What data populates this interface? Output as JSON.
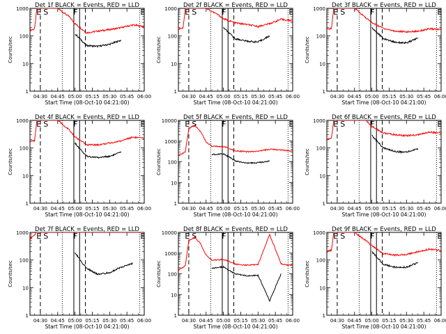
{
  "figure": {
    "panels": [
      {
        "title": "Det 1f BLACK = Events, RED = LLD",
        "xlabel": "Start Time (08-Oct-10 04:21:00)",
        "ylabel": "Counts/sec"
      },
      {
        "title": "Det 2f BLACK = Events, RED = LLD",
        "xlabel": "Start Time (08-Oct-10 04:21:00)",
        "ylabel": "Counts/sec"
      },
      {
        "title": "Det 3f BLACK = Events, RED = LLD",
        "xlabel": "Start Time (08-Oct-10 04:21:00)",
        "ylabel": "Counts/sec"
      },
      {
        "title": "Det 4f BLACK = Events, RED = LLD",
        "xlabel": "Start Time (08-Oct-10 04:21:00)",
        "ylabel": "Counts/sec"
      },
      {
        "title": "Det 5f BLACK = Events, RED = LLD",
        "xlabel": "Start Time (08-Oct-10 04:21:00)",
        "ylabel": "Counts/sec"
      },
      {
        "title": "Det 6f BLACK = Events, RED = LLD",
        "xlabel": "Start Time (08-Oct-10 04:21:00)",
        "ylabel": "Counts/sec"
      },
      {
        "title": "Det 7f BLACK = Events, RED = LLD",
        "xlabel": "Start Time (08-Oct-10 04:21:00)",
        "ylabel": "Counts/sec"
      },
      {
        "title": "Det 8f BLACK = Events, RED = LLD",
        "xlabel": "Start Time (08-Oct-10 04:21:00)",
        "ylabel": "Counts/sec"
      },
      {
        "title": "Det 9f BLACK = Events, RED = LLD",
        "xlabel": "Start Time (08-Oct-10 04:21:00)",
        "ylabel": "Counts/sec"
      }
    ],
    "x_ticks": [
      "04:30",
      "04:45",
      "05:00",
      "05:15",
      "05:30",
      "05:45",
      "06:00"
    ],
    "y_ticks": [
      "1",
      "10",
      "100",
      "1000",
      "10000"
    ],
    "markers": [
      "E",
      "S",
      "F",
      "E"
    ],
    "colors": {
      "events": "#000000",
      "lld": "#ff0000",
      "axes": "#000000"
    }
  },
  "chart_data": [
    {
      "type": "line",
      "title": "Det 1f BLACK = Events, RED = LLD",
      "xlabel": "Start Time (08-Oct-10 04:21:00)",
      "ylabel": "Counts/sec",
      "y_scale": "log",
      "xlim": [
        "04:21",
        "06:00"
      ],
      "ylim": [
        1,
        1000
      ],
      "grid": false,
      "legend": "none",
      "x": [
        "04:21",
        "04:25",
        "04:27",
        "04:33",
        "04:45",
        "04:55",
        "05:00",
        "05:10",
        "05:20",
        "05:30",
        "05:40",
        "05:50",
        "06:00"
      ],
      "series": [
        {
          "name": "LLD",
          "color": "#ff0000",
          "values": [
            160,
            180,
            1000,
            1000,
            1000,
            500,
            280,
            130,
            150,
            170,
            200,
            250,
            220
          ]
        },
        {
          "name": "Events",
          "color": "#000000",
          "values": [
            null,
            null,
            null,
            null,
            null,
            null,
            120,
            45,
            42,
            50,
            70,
            null,
            null
          ]
        }
      ]
    },
    {
      "type": "line",
      "title": "Det 2f BLACK = Events, RED = LLD",
      "xlabel": "Start Time (08-Oct-10 04:21:00)",
      "ylabel": "Counts/sec",
      "y_scale": "log",
      "xlim": [
        "04:21",
        "06:00"
      ],
      "ylim": [
        1,
        1000
      ],
      "grid": false,
      "legend": "none",
      "x": [
        "04:21",
        "04:25",
        "04:27",
        "04:33",
        "04:45",
        "04:55",
        "05:00",
        "05:10",
        "05:20",
        "05:30",
        "05:40",
        "05:50",
        "06:00"
      ],
      "series": [
        {
          "name": "LLD",
          "color": "#ff0000",
          "values": [
            180,
            200,
            1000,
            1000,
            1000,
            600,
            420,
            300,
            260,
            220,
            280,
            400,
            350
          ]
        },
        {
          "name": "Events",
          "color": "#000000",
          "values": [
            null,
            null,
            null,
            null,
            null,
            null,
            200,
            80,
            65,
            60,
            100,
            null,
            null
          ]
        }
      ]
    },
    {
      "type": "line",
      "title": "Det 3f BLACK = Events, RED = LLD",
      "xlabel": "Start Time (08-Oct-10 04:21:00)",
      "ylabel": "Counts/sec",
      "y_scale": "log",
      "xlim": [
        "04:21",
        "06:00"
      ],
      "ylim": [
        1,
        1000
      ],
      "grid": false,
      "legend": "none",
      "x": [
        "04:21",
        "04:25",
        "04:27",
        "04:33",
        "04:45",
        "04:55",
        "05:00",
        "05:10",
        "05:20",
        "05:30",
        "05:40",
        "05:50",
        "06:00"
      ],
      "series": [
        {
          "name": "LLD",
          "color": "#ff0000",
          "values": [
            170,
            190,
            1000,
            1000,
            1000,
            450,
            300,
            190,
            150,
            140,
            150,
            180,
            170
          ]
        },
        {
          "name": "Events",
          "color": "#000000",
          "values": [
            null,
            null,
            null,
            null,
            null,
            null,
            200,
            80,
            60,
            55,
            85,
            null,
            null
          ]
        }
      ]
    },
    {
      "type": "line",
      "title": "Det 4f BLACK = Events, RED = LLD",
      "xlabel": "Start Time (08-Oct-10 04:21:00)",
      "ylabel": "Counts/sec",
      "y_scale": "log",
      "xlim": [
        "04:21",
        "06:00"
      ],
      "ylim": [
        1,
        1000
      ],
      "grid": false,
      "legend": "none",
      "x": [
        "04:21",
        "04:25",
        "04:27",
        "04:33",
        "04:45",
        "04:55",
        "05:00",
        "05:10",
        "05:20",
        "05:30",
        "05:40",
        "05:50",
        "06:00"
      ],
      "series": [
        {
          "name": "LLD",
          "color": "#ff0000",
          "values": [
            170,
            190,
            1000,
            1000,
            1000,
            450,
            250,
            130,
            130,
            150,
            180,
            250,
            220
          ]
        },
        {
          "name": "Events",
          "color": "#000000",
          "values": [
            null,
            null,
            null,
            null,
            null,
            null,
            150,
            50,
            45,
            50,
            70,
            null,
            null
          ]
        }
      ]
    },
    {
      "type": "line",
      "title": "Det 5f BLACK = Events, RED = LLD",
      "xlabel": "Start Time (08-Oct-10 04:21:00)",
      "ylabel": "Counts/sec",
      "y_scale": "log",
      "xlim": [
        "04:21",
        "06:00"
      ],
      "ylim": [
        1,
        10000
      ],
      "grid": false,
      "legend": "none",
      "x": [
        "04:21",
        "04:27",
        "04:30",
        "04:35",
        "04:40",
        "04:45",
        "04:50",
        "05:00",
        "05:10",
        "05:20",
        "05:30",
        "05:40",
        "05:50",
        "06:00"
      ],
      "series": [
        {
          "name": "LLD",
          "color": "#ff0000",
          "values": [
            200,
            300,
            4000,
            6000,
            3000,
            900,
            550,
            550,
            350,
            300,
            320,
            400,
            380,
            320
          ]
        },
        {
          "name": "Events",
          "color": "#000000",
          "values": [
            null,
            null,
            null,
            null,
            null,
            null,
            220,
            250,
            110,
            85,
            90,
            110,
            null,
            null
          ]
        }
      ]
    },
    {
      "type": "line",
      "title": "Det 6f BLACK = Events, RED = LLD",
      "xlabel": "Start Time (08-Oct-10 04:21:00)",
      "ylabel": "Counts/sec",
      "y_scale": "log",
      "xlim": [
        "04:21",
        "06:00"
      ],
      "ylim": [
        1,
        1000
      ],
      "grid": false,
      "legend": "none",
      "x": [
        "04:21",
        "04:25",
        "04:27",
        "04:33",
        "04:45",
        "04:55",
        "05:00",
        "05:10",
        "05:20",
        "05:30",
        "05:40",
        "05:50",
        "06:00"
      ],
      "series": [
        {
          "name": "LLD",
          "color": "#ff0000",
          "values": [
            200,
            230,
            1000,
            1000,
            1000,
            1000,
            600,
            350,
            300,
            280,
            300,
            380,
            340
          ]
        },
        {
          "name": "Events",
          "color": "#000000",
          "values": [
            null,
            null,
            null,
            null,
            null,
            null,
            280,
            100,
            75,
            70,
            95,
            null,
            null
          ]
        }
      ]
    },
    {
      "type": "line",
      "title": "Det 7f BLACK = Events, RED = LLD",
      "xlabel": "Start Time (08-Oct-10 04:21:00)",
      "ylabel": "Counts/sec",
      "y_scale": "log",
      "xlim": [
        "04:21",
        "06:00"
      ],
      "ylim": [
        1,
        1000
      ],
      "grid": false,
      "legend": "none",
      "x": [
        "04:21",
        "04:25",
        "04:27",
        "04:33",
        "04:45",
        "04:55",
        "05:00",
        "05:10",
        "05:20",
        "05:30",
        "05:40",
        "05:50",
        "06:00"
      ],
      "series": [
        {
          "name": "LLD",
          "color": "#ff0000",
          "values": [
            600,
            800,
            1000,
            1000,
            1000,
            1000,
            1000,
            1000,
            1000,
            1000,
            1000,
            1000,
            1000
          ]
        },
        {
          "name": "Events",
          "color": "#000000",
          "values": [
            null,
            null,
            null,
            null,
            null,
            null,
            180,
            50,
            30,
            35,
            55,
            75,
            null
          ]
        }
      ]
    },
    {
      "type": "line",
      "title": "Det 8f BLACK = Events, RED = LLD",
      "xlabel": "Start Time (08-Oct-10 04:21:00)",
      "ylabel": "Counts/sec",
      "y_scale": "log",
      "xlim": [
        "04:21",
        "06:00"
      ],
      "ylim": [
        1,
        10000
      ],
      "grid": false,
      "legend": "none",
      "x": [
        "04:21",
        "04:27",
        "04:30",
        "04:35",
        "04:40",
        "04:45",
        "04:50",
        "05:00",
        "05:10",
        "05:20",
        "05:30",
        "05:40",
        "05:50",
        "06:00"
      ],
      "series": [
        {
          "name": "LLD",
          "color": "#ff0000",
          "values": [
            150,
            250,
            4000,
            6000,
            3000,
            800,
            450,
            500,
            300,
            260,
            280,
            8000,
            300,
            250
          ]
        },
        {
          "name": "Events",
          "color": "#000000",
          "values": [
            null,
            null,
            null,
            null,
            null,
            null,
            180,
            220,
            100,
            80,
            85,
            5,
            100,
            null
          ]
        }
      ]
    },
    {
      "type": "line",
      "title": "Det 9f BLACK = Events, RED = LLD",
      "xlabel": "Start Time (08-Oct-10 04:21:00)",
      "ylabel": "Counts/sec",
      "y_scale": "log",
      "xlim": [
        "04:21",
        "06:00"
      ],
      "ylim": [
        1,
        1000
      ],
      "grid": false,
      "legend": "none",
      "x": [
        "04:21",
        "04:25",
        "04:27",
        "04:33",
        "04:45",
        "04:55",
        "05:00",
        "05:10",
        "05:20",
        "05:30",
        "05:40",
        "05:50",
        "06:00"
      ],
      "series": [
        {
          "name": "LLD",
          "color": "#ff0000",
          "values": [
            200,
            230,
            1000,
            1000,
            1000,
            500,
            330,
            170,
            150,
            160,
            200,
            250,
            220
          ]
        },
        {
          "name": "Events",
          "color": "#000000",
          "values": [
            null,
            null,
            null,
            null,
            null,
            null,
            200,
            70,
            55,
            55,
            80,
            null,
            null
          ]
        }
      ]
    }
  ]
}
